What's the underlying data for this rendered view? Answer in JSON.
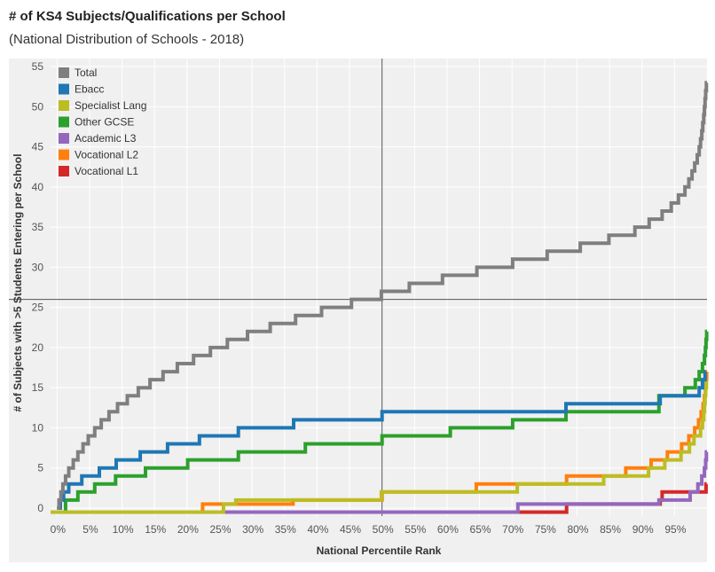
{
  "title": "# of KS4 Subjects/Qualifications per School",
  "subtitle": "(National Distribution of Schools - 2018)",
  "chart_data": {
    "type": "line",
    "step": true,
    "xlabel": "National Percentile Rank",
    "ylabel": "# of Subjects with >5 Students Entering per School",
    "xlim": [
      -1,
      100
    ],
    "ylim": [
      -1,
      56
    ],
    "x_tick_labels": [
      "0%",
      "5%",
      "10%",
      "15%",
      "20%",
      "25%",
      "30%",
      "35%",
      "40%",
      "45%",
      "50%",
      "55%",
      "60%",
      "65%",
      "70%",
      "75%",
      "80%",
      "85%",
      "90%",
      "95%"
    ],
    "x_ticks": [
      0,
      5,
      10,
      15,
      20,
      25,
      30,
      35,
      40,
      45,
      50,
      55,
      60,
      65,
      70,
      75,
      80,
      85,
      90,
      95
    ],
    "y_ticks": [
      0,
      5,
      10,
      15,
      20,
      25,
      30,
      35,
      40,
      45,
      50,
      55
    ],
    "reference_lines": {
      "x": 50,
      "y": 26
    },
    "legend_position": "top-left",
    "colors": {
      "background": "#f0f0f0",
      "grid": "#ffffff",
      "reference": "#555555"
    },
    "series": [
      {
        "name": "Total",
        "color": "#7f7f7f",
        "points": [
          [
            0,
            0
          ],
          [
            0.3,
            1
          ],
          [
            0.6,
            2
          ],
          [
            0.9,
            3
          ],
          [
            1.3,
            4
          ],
          [
            1.8,
            5
          ],
          [
            2.5,
            6
          ],
          [
            3.2,
            7
          ],
          [
            4,
            8
          ],
          [
            4.8,
            9
          ],
          [
            5.8,
            10
          ],
          [
            6.8,
            11
          ],
          [
            8,
            12
          ],
          [
            9.3,
            13
          ],
          [
            10.8,
            14
          ],
          [
            12.5,
            15
          ],
          [
            14.3,
            16
          ],
          [
            16.3,
            17
          ],
          [
            18.5,
            18
          ],
          [
            21,
            19
          ],
          [
            23.6,
            20
          ],
          [
            26.2,
            21
          ],
          [
            29.3,
            22
          ],
          [
            32.8,
            23
          ],
          [
            36.7,
            24
          ],
          [
            40.7,
            25
          ],
          [
            45.3,
            26
          ],
          [
            49.9,
            27
          ],
          [
            54.2,
            28
          ],
          [
            59.3,
            29
          ],
          [
            64.6,
            30
          ],
          [
            70.1,
            31
          ],
          [
            75.4,
            32
          ],
          [
            80.5,
            33
          ],
          [
            84.9,
            34
          ],
          [
            88.9,
            35
          ],
          [
            91.1,
            36
          ],
          [
            93.1,
            37
          ],
          [
            94.5,
            38
          ],
          [
            95.6,
            39
          ],
          [
            96.6,
            40
          ],
          [
            97.2,
            41
          ],
          [
            97.7,
            42
          ],
          [
            98.1,
            43
          ],
          [
            98.5,
            44
          ],
          [
            98.8,
            45
          ],
          [
            99.0,
            46
          ],
          [
            99.2,
            47
          ],
          [
            99.35,
            48
          ],
          [
            99.5,
            49
          ],
          [
            99.6,
            50
          ],
          [
            99.7,
            51
          ],
          [
            99.8,
            52
          ],
          [
            99.9,
            53
          ]
        ]
      },
      {
        "name": "Ebacc",
        "color": "#1f77b4",
        "points": [
          [
            0,
            0
          ],
          [
            0.5,
            1
          ],
          [
            1,
            2
          ],
          [
            1.8,
            3
          ],
          [
            3.8,
            4
          ],
          [
            6.5,
            5
          ],
          [
            9.1,
            6
          ],
          [
            12.8,
            7
          ],
          [
            17,
            8
          ],
          [
            21.9,
            9
          ],
          [
            27.9,
            10
          ],
          [
            36.4,
            11
          ],
          [
            50,
            12
          ],
          [
            78.3,
            13
          ],
          [
            92.8,
            14
          ],
          [
            98.8,
            15
          ],
          [
            99.3,
            16
          ],
          [
            99.7,
            17
          ]
        ]
      },
      {
        "name": "Specialist Lang",
        "color": "#bcbd22",
        "points": [
          [
            -1,
            -0.5
          ],
          [
            25.4,
            -0.5
          ],
          [
            25.6,
            0.5
          ],
          [
            27.5,
            1
          ],
          [
            49.9,
            2
          ],
          [
            70.8,
            3
          ],
          [
            84.1,
            4
          ],
          [
            91,
            5
          ],
          [
            93.5,
            6
          ],
          [
            96,
            7
          ],
          [
            97.3,
            8
          ],
          [
            98,
            9
          ],
          [
            99,
            10
          ],
          [
            99.3,
            11
          ],
          [
            99.5,
            12
          ],
          [
            99.6,
            13
          ],
          [
            99.7,
            14
          ],
          [
            99.8,
            15
          ],
          [
            99.9,
            16
          ]
        ]
      },
      {
        "name": "Other GCSE",
        "color": "#2ca02c",
        "points": [
          [
            0,
            -0.5
          ],
          [
            1.3,
            1
          ],
          [
            3.2,
            2
          ],
          [
            5.8,
            3
          ],
          [
            9,
            4
          ],
          [
            13.6,
            5
          ],
          [
            20.1,
            6
          ],
          [
            27.9,
            7
          ],
          [
            38.2,
            8
          ],
          [
            50,
            9
          ],
          [
            60.5,
            10
          ],
          [
            70.1,
            11
          ],
          [
            78.3,
            12
          ],
          [
            92.6,
            14
          ],
          [
            96.6,
            15
          ],
          [
            98.2,
            16
          ],
          [
            98.8,
            17
          ],
          [
            99.3,
            18
          ],
          [
            99.6,
            19
          ],
          [
            99.75,
            20
          ],
          [
            99.85,
            21
          ],
          [
            99.95,
            22
          ]
        ]
      },
      {
        "name": "Academic L3",
        "color": "#9467bd",
        "points": [
          [
            -1,
            -0.5
          ],
          [
            70.8,
            -0.5
          ],
          [
            70.9,
            0.5
          ],
          [
            92.6,
            1
          ],
          [
            97.4,
            2
          ],
          [
            98.6,
            3
          ],
          [
            99.2,
            4
          ],
          [
            99.6,
            5
          ],
          [
            99.8,
            6
          ],
          [
            99.9,
            7
          ]
        ]
      },
      {
        "name": "Vocational L2",
        "color": "#ff7f0e",
        "points": [
          [
            -1,
            -0.5
          ],
          [
            22.2,
            -0.5
          ],
          [
            22.4,
            0.5
          ],
          [
            36.3,
            1
          ],
          [
            50,
            2
          ],
          [
            64.5,
            3
          ],
          [
            78.4,
            4
          ],
          [
            87.5,
            5
          ],
          [
            91.4,
            6
          ],
          [
            93.9,
            7
          ],
          [
            96.1,
            8
          ],
          [
            97.2,
            9
          ],
          [
            98.1,
            10
          ],
          [
            98.7,
            11
          ],
          [
            99.1,
            12
          ],
          [
            99.4,
            13
          ],
          [
            99.6,
            14
          ],
          [
            99.75,
            15
          ],
          [
            99.85,
            16
          ],
          [
            99.95,
            17
          ]
        ]
      },
      {
        "name": "Vocational L1",
        "color": "#d62728",
        "points": [
          [
            -1,
            -0.5
          ],
          [
            78.3,
            -0.5
          ],
          [
            78.4,
            0.5
          ],
          [
            92.8,
            1
          ],
          [
            93.1,
            2
          ],
          [
            99.85,
            3
          ]
        ]
      }
    ]
  }
}
